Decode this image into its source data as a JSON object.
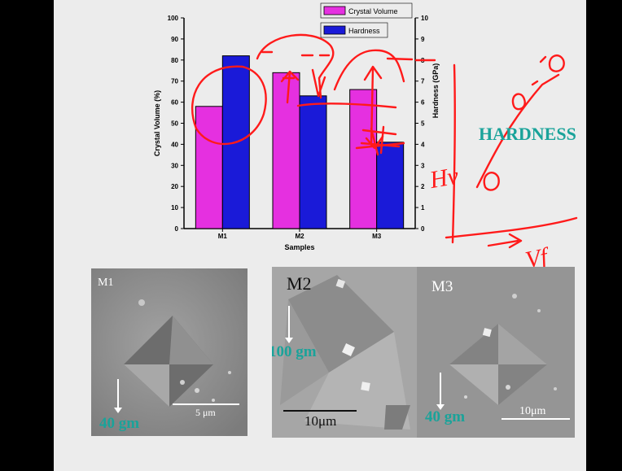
{
  "chart_data": {
    "type": "bar",
    "categories": [
      "M1",
      "M2",
      "M3"
    ],
    "series": [
      {
        "name": "Crystal Volume",
        "axis": "left",
        "color": "#e530e0",
        "values": [
          58,
          74,
          66
        ]
      },
      {
        "name": "Hardness",
        "axis": "right",
        "color": "#1a1ad8",
        "values": [
          8.2,
          6.3,
          4.1
        ]
      }
    ],
    "xlabel": "Samples",
    "ylabel_left": "Crystal Volume (%)",
    "ylabel_right": "Hardness (GPa)",
    "ylim_left": [
      0,
      100
    ],
    "ylim_right": [
      0,
      10
    ],
    "yticks_left": [
      "0",
      "10",
      "20",
      "30",
      "40",
      "50",
      "60",
      "70",
      "80",
      "90",
      "100"
    ],
    "yticks_right": [
      "0",
      "1",
      "2",
      "3",
      "4",
      "5",
      "6",
      "7",
      "8",
      "9",
      "10"
    ],
    "legend_position": "top-right",
    "grid": false
  },
  "side_label": "HARDNESS",
  "handwriting": {
    "y_axis_label": "Hv",
    "x_axis_label": "Vf"
  },
  "micrographs": [
    {
      "title": "M1",
      "load": "40 gm",
      "scale": "5 μm"
    },
    {
      "title": "M2",
      "load": "100 gm",
      "scale": "10μm"
    },
    {
      "title": "M3",
      "load": "40 gm",
      "scale": "10μm"
    }
  ],
  "colors": {
    "annotation": "#ff1a1a",
    "teal_text": "#1aa39a",
    "slide_bg": "#ececec"
  }
}
